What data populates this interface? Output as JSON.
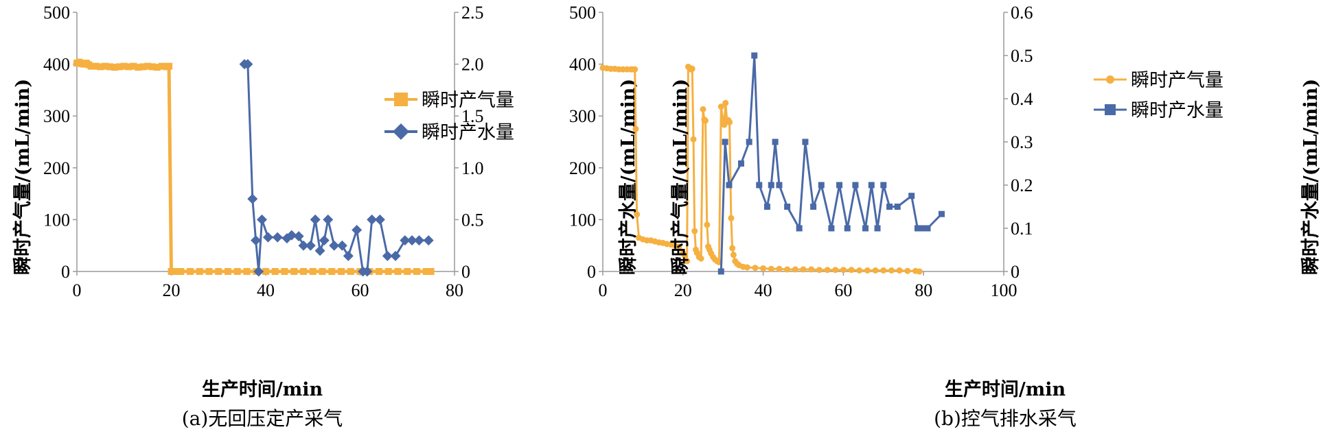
{
  "chart_data": [
    {
      "type": "line",
      "caption": "(a)无回压定产采气",
      "xlabel": "生产时间/min",
      "ylabel_left": "瞬时产气量/(mL/min)",
      "ylabel_right": "瞬时产水量/(mL/min)",
      "xlim": [
        0,
        80
      ],
      "ylim_left": [
        0,
        500
      ],
      "ylim_right": [
        0,
        2.5
      ],
      "x_ticks": [
        "0",
        "20",
        "40",
        "60",
        "80"
      ],
      "y_left_ticks": [
        "0",
        "100",
        "200",
        "300",
        "400",
        "500"
      ],
      "y_right_ticks": [
        "0",
        "0.5",
        "1.0",
        "1.5",
        "2.0",
        "2.5"
      ],
      "legend_position": "top-right",
      "series": [
        {
          "name": "瞬时产气量",
          "axis": "left",
          "color": "#F5B041",
          "marker": "square",
          "x": [
            0,
            0.5,
            1,
            1.5,
            2,
            2.5,
            3,
            4,
            5,
            6,
            7,
            8,
            9,
            10,
            11,
            12,
            13,
            14,
            15,
            16,
            17,
            18,
            19,
            19.5,
            20,
            21,
            22,
            24,
            26,
            28,
            30,
            32,
            34,
            36,
            38,
            40,
            42,
            44,
            46,
            48,
            50,
            52,
            54,
            56,
            58,
            60,
            62,
            64,
            66,
            68,
            70,
            72,
            74,
            75
          ],
          "y": [
            402,
            404,
            401,
            400,
            402,
            399,
            396,
            396,
            395,
            396,
            395,
            394,
            395,
            396,
            395,
            396,
            394,
            395,
            396,
            395,
            394,
            396,
            395,
            396,
            0,
            0,
            0,
            0,
            0,
            0,
            0,
            0,
            0,
            0,
            0,
            0,
            0,
            0,
            0,
            0,
            0,
            0,
            0,
            0,
            0,
            0,
            0,
            0,
            0,
            0,
            0,
            0,
            0,
            0
          ]
        },
        {
          "name": "瞬时产水量",
          "axis": "right",
          "color": "#4A69A7",
          "marker": "diamond",
          "x": [
            35.5,
            36.2,
            37.2,
            37.9,
            38.5,
            39.2,
            40.5,
            42.5,
            44.5,
            45.5,
            47,
            48,
            49.5,
            50.5,
            51.5,
            52.4,
            53.2,
            54.5,
            56.2,
            57.5,
            59.3,
            60.6,
            61.5,
            62.5,
            64.2,
            65.8,
            67.5,
            69.5,
            71,
            72.5,
            74.5
          ],
          "y": [
            2.0,
            2.0,
            0.7,
            0.3,
            0.0,
            0.5,
            0.33,
            0.33,
            0.32,
            0.35,
            0.34,
            0.25,
            0.25,
            0.5,
            0.2,
            0.3,
            0.5,
            0.25,
            0.25,
            0.15,
            0.4,
            0.0,
            0.0,
            0.5,
            0.5,
            0.15,
            0.15,
            0.3,
            0.3,
            0.3,
            0.3
          ]
        }
      ]
    },
    {
      "type": "line",
      "caption": "(b)控气排水采气",
      "xlabel": "生产时间/min",
      "ylabel_left": "瞬时产气量/(mL/min)",
      "ylabel_right": "瞬时产水量/(mL/min)",
      "xlim": [
        0,
        100
      ],
      "ylim_left": [
        0,
        500
      ],
      "ylim_right": [
        0,
        0.6
      ],
      "x_ticks": [
        "0",
        "20",
        "40",
        "60",
        "80",
        "100"
      ],
      "y_left_ticks": [
        "0",
        "100",
        "200",
        "300",
        "400",
        "500"
      ],
      "y_right_ticks": [
        "0",
        "0.1",
        "0.2",
        "0.3",
        "0.4",
        "0.5",
        "0.6"
      ],
      "legend_position": "top-right",
      "series": [
        {
          "name": "瞬时产气量",
          "axis": "left",
          "color": "#F5B041",
          "marker": "circle",
          "x": [
            0,
            1,
            2,
            3,
            4,
            5,
            6,
            7,
            7.5,
            8,
            8.2,
            8.5,
            9,
            10,
            11,
            12,
            13,
            14,
            15,
            16,
            17,
            18,
            19,
            20,
            20.5,
            21,
            21.3,
            21.6,
            22,
            22.3,
            22.6,
            22.9,
            23.2,
            23.5,
            24,
            24.5,
            25,
            25.3,
            25.6,
            26,
            26.3,
            26.6,
            27,
            27.5,
            28,
            28.5,
            29,
            29.5,
            30,
            30.3,
            30.6,
            31,
            31.3,
            31.6,
            32,
            32.3,
            32.6,
            33,
            33.5,
            34,
            35,
            36,
            38,
            40,
            42,
            44,
            46,
            48,
            50,
            52,
            54,
            56,
            58,
            60,
            62,
            64,
            66,
            68,
            70,
            72,
            74,
            76,
            78,
            79
          ],
          "y": [
            393,
            392,
            391,
            391,
            390,
            390,
            390,
            390,
            390,
            390,
            275,
            110,
            65,
            62,
            60,
            60,
            58,
            56,
            55,
            53,
            52,
            50,
            48,
            35,
            30,
            20,
            395,
            393,
            390,
            391,
            255,
            78,
            42,
            36,
            28,
            25,
            313,
            293,
            291,
            90,
            48,
            42,
            35,
            28,
            23,
            20,
            18,
            318,
            293,
            283,
            325,
            290,
            292,
            288,
            103,
            45,
            32,
            20,
            15,
            12,
            9,
            8,
            7,
            6,
            5,
            5,
            4,
            4,
            4,
            4,
            3,
            3,
            3,
            3,
            3,
            2,
            2,
            2,
            2,
            2,
            2,
            1,
            1,
            0
          ]
        },
        {
          "name": "瞬时产水量",
          "axis": "right",
          "color": "#4A69A7",
          "marker": "square",
          "x": [
            29.5,
            30.5,
            31.5,
            34.5,
            36.5,
            37.8,
            39,
            41,
            42,
            43,
            44,
            46,
            49,
            50.5,
            52.5,
            54.5,
            57,
            59,
            61,
            63,
            65.5,
            67,
            68.5,
            70,
            71.5,
            73.5,
            77,
            78.5,
            79.5,
            81,
            84.5
          ],
          "y": [
            0.0,
            0.3,
            0.2,
            0.25,
            0.3,
            0.5,
            0.2,
            0.15,
            0.2,
            0.3,
            0.2,
            0.15,
            0.1,
            0.3,
            0.15,
            0.2,
            0.1,
            0.2,
            0.1,
            0.2,
            0.1,
            0.2,
            0.1,
            0.2,
            0.15,
            0.15,
            0.175,
            0.1,
            0.1,
            0.1,
            0.133
          ]
        }
      ]
    }
  ]
}
